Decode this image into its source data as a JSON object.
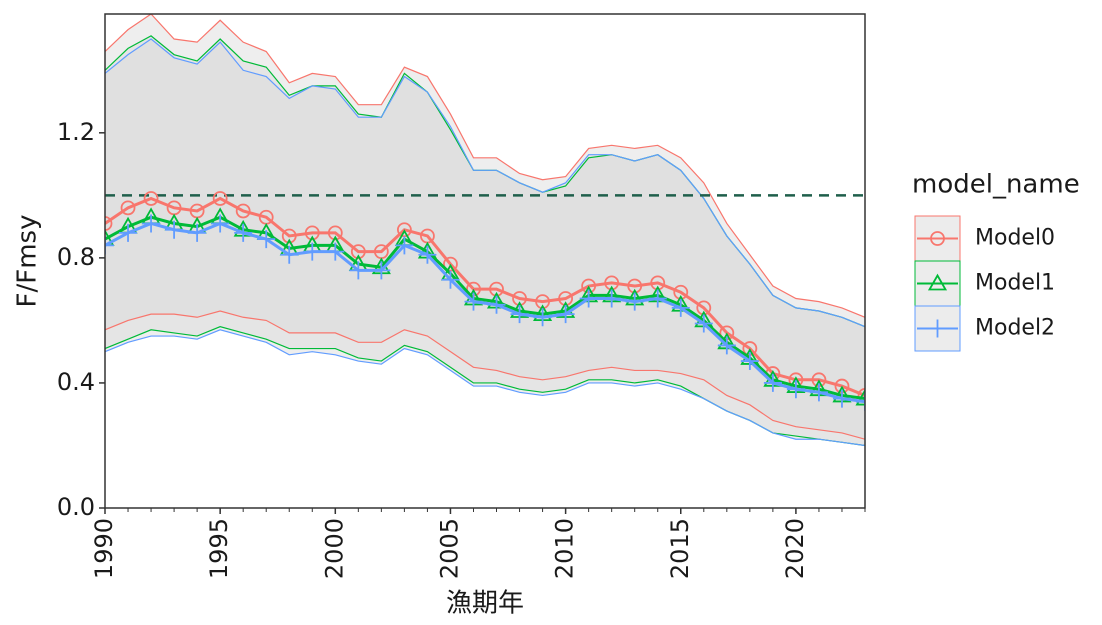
{
  "chart_data": {
    "type": "line",
    "x_label": "漁期年",
    "y_label": "F/Fmsy",
    "x": [
      1990,
      1991,
      1992,
      1993,
      1994,
      1995,
      1996,
      1997,
      1998,
      1999,
      2000,
      2001,
      2002,
      2003,
      2004,
      2005,
      2006,
      2007,
      2008,
      2009,
      2010,
      2011,
      2012,
      2013,
      2014,
      2015,
      2016,
      2017,
      2018,
      2019,
      2020,
      2021,
      2022,
      2023
    ],
    "xlim": [
      1990,
      2023
    ],
    "xticks": [
      1990,
      1995,
      2000,
      2005,
      2010,
      2015,
      2020
    ],
    "ylim": [
      0,
      1.58
    ],
    "yticks": [
      {
        "value": 0,
        "label": "0.0"
      },
      0.4,
      0.8,
      1.2
    ],
    "hline": {
      "value": 1,
      "color": "#1f5f4b",
      "dashed": true
    },
    "band_fill": "#d9d9d9",
    "legend_title": "model_name",
    "legend": "right",
    "series": [
      {
        "name": "Model0",
        "color": "#f8766d",
        "marker": "circle",
        "values": [
          0.91,
          0.96,
          0.99,
          0.96,
          0.95,
          0.99,
          0.95,
          0.93,
          0.87,
          0.88,
          0.88,
          0.82,
          0.82,
          0.89,
          0.87,
          0.78,
          0.7,
          0.7,
          0.67,
          0.66,
          0.67,
          0.71,
          0.72,
          0.71,
          0.72,
          0.69,
          0.64,
          0.56,
          0.51,
          0.43,
          0.41,
          0.41,
          0.39,
          0.36
        ],
        "upper": [
          1.46,
          1.53,
          1.58,
          1.5,
          1.49,
          1.56,
          1.49,
          1.46,
          1.36,
          1.39,
          1.38,
          1.29,
          1.29,
          1.41,
          1.38,
          1.26,
          1.12,
          1.12,
          1.07,
          1.05,
          1.06,
          1.15,
          1.16,
          1.15,
          1.16,
          1.12,
          1.04,
          0.91,
          0.81,
          0.71,
          0.67,
          0.66,
          0.64,
          0.61
        ],
        "lower": [
          0.57,
          0.6,
          0.62,
          0.62,
          0.61,
          0.63,
          0.61,
          0.6,
          0.56,
          0.56,
          0.56,
          0.53,
          0.53,
          0.57,
          0.55,
          0.5,
          0.45,
          0.44,
          0.42,
          0.41,
          0.42,
          0.44,
          0.45,
          0.44,
          0.44,
          0.43,
          0.41,
          0.36,
          0.33,
          0.28,
          0.26,
          0.25,
          0.24,
          0.22
        ]
      },
      {
        "name": "Model1",
        "color": "#00ba38",
        "marker": "triangle",
        "values": [
          0.86,
          0.9,
          0.93,
          0.91,
          0.9,
          0.93,
          0.89,
          0.88,
          0.83,
          0.84,
          0.84,
          0.78,
          0.77,
          0.86,
          0.82,
          0.75,
          0.67,
          0.66,
          0.63,
          0.62,
          0.63,
          0.68,
          0.68,
          0.67,
          0.68,
          0.65,
          0.6,
          0.53,
          0.48,
          0.41,
          0.39,
          0.38,
          0.36,
          0.35
        ],
        "upper": [
          1.4,
          1.47,
          1.51,
          1.45,
          1.43,
          1.5,
          1.43,
          1.41,
          1.32,
          1.35,
          1.35,
          1.26,
          1.25,
          1.39,
          1.33,
          1.21,
          1.08,
          1.08,
          1.04,
          1.01,
          1.03,
          1.12,
          1.13,
          1.11,
          1.13,
          1.08,
          0.99,
          0.87,
          0.78,
          0.68,
          0.64,
          0.63,
          0.61,
          0.58
        ],
        "lower": [
          0.51,
          0.54,
          0.57,
          0.56,
          0.55,
          0.58,
          0.56,
          0.54,
          0.51,
          0.51,
          0.51,
          0.48,
          0.47,
          0.52,
          0.5,
          0.45,
          0.4,
          0.4,
          0.38,
          0.37,
          0.38,
          0.41,
          0.41,
          0.4,
          0.41,
          0.39,
          0.35,
          0.31,
          0.28,
          0.24,
          0.23,
          0.22,
          0.21,
          0.2
        ]
      },
      {
        "name": "Model2",
        "color": "#619cff",
        "marker": "plus",
        "values": [
          0.84,
          0.88,
          0.91,
          0.89,
          0.88,
          0.91,
          0.88,
          0.86,
          0.81,
          0.82,
          0.82,
          0.76,
          0.76,
          0.84,
          0.81,
          0.73,
          0.66,
          0.65,
          0.62,
          0.61,
          0.62,
          0.67,
          0.67,
          0.66,
          0.67,
          0.64,
          0.59,
          0.52,
          0.47,
          0.4,
          0.38,
          0.37,
          0.35,
          0.34
        ],
        "upper": [
          1.39,
          1.45,
          1.5,
          1.44,
          1.42,
          1.49,
          1.4,
          1.38,
          1.31,
          1.35,
          1.34,
          1.25,
          1.25,
          1.38,
          1.33,
          1.22,
          1.08,
          1.08,
          1.04,
          1.01,
          1.04,
          1.13,
          1.13,
          1.11,
          1.13,
          1.08,
          0.99,
          0.87,
          0.78,
          0.68,
          0.64,
          0.63,
          0.61,
          0.58
        ],
        "lower": [
          0.5,
          0.53,
          0.55,
          0.55,
          0.54,
          0.57,
          0.55,
          0.53,
          0.49,
          0.5,
          0.49,
          0.47,
          0.46,
          0.51,
          0.49,
          0.44,
          0.39,
          0.39,
          0.37,
          0.36,
          0.37,
          0.4,
          0.4,
          0.39,
          0.4,
          0.38,
          0.35,
          0.31,
          0.28,
          0.24,
          0.22,
          0.22,
          0.21,
          0.2
        ]
      }
    ]
  }
}
